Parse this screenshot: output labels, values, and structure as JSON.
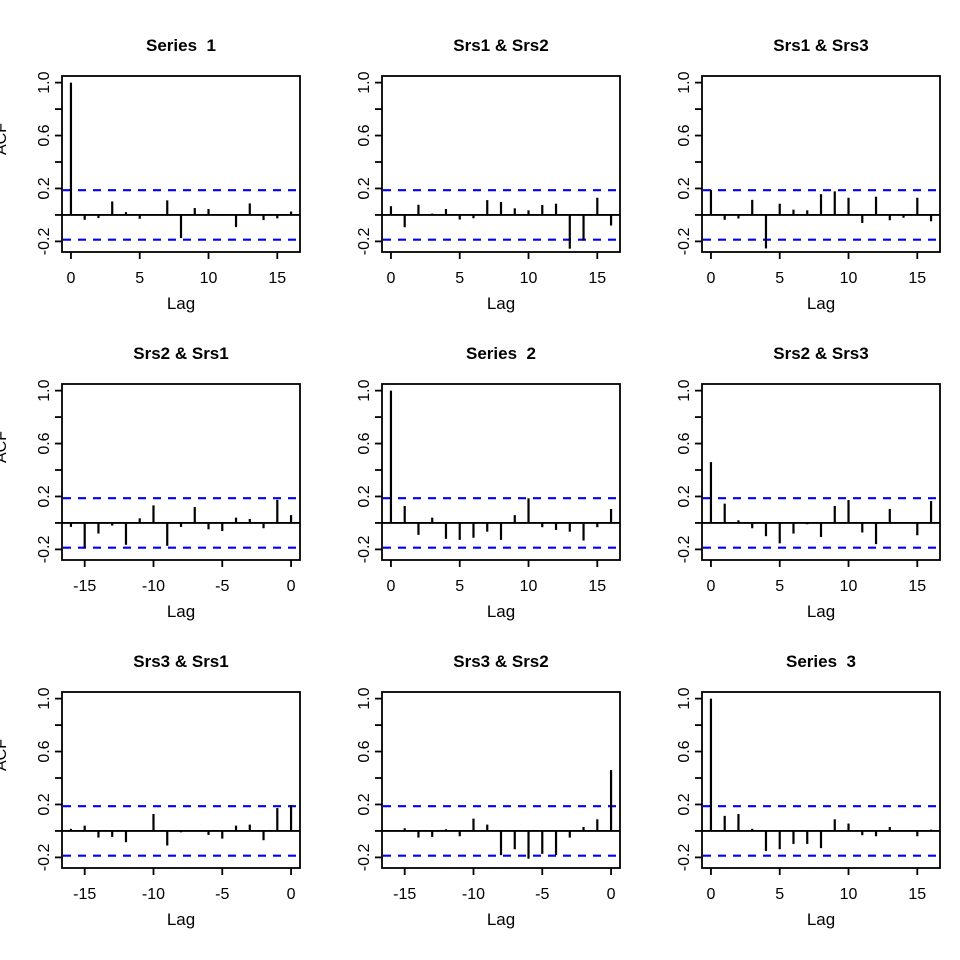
{
  "figure": {
    "background": "#ffffff",
    "bar_color": "#000000",
    "axis_color": "#000000",
    "confidence_line_color": "#0000ff",
    "confidence_bound": 0.187,
    "ylabel": "ACF",
    "xlabel": "Lag",
    "ylim": [
      -0.28,
      1.05
    ],
    "y_tick_values": [
      -0.2,
      0.2,
      0.6,
      1.0
    ],
    "y_tick_labels": [
      "-0.2",
      "0.2",
      "0.6",
      "1.0"
    ],
    "y_minor_ticks": [
      0.0,
      0.4,
      0.8
    ]
  },
  "chart_data": [
    {
      "type": "bar",
      "title": "Series  1",
      "row": 0,
      "col": 0,
      "xlim": [
        -0.65,
        16.65
      ],
      "x_ticks": [
        0,
        5,
        10,
        15
      ],
      "x_tick_labels": [
        "0",
        "5",
        "10",
        "15"
      ],
      "show_acf_label": true,
      "lags": [
        0,
        1,
        2,
        3,
        4,
        5,
        6,
        7,
        8,
        9,
        10,
        11,
        12,
        13,
        14,
        15,
        16
      ],
      "values": [
        1.0,
        -0.037,
        -0.024,
        0.102,
        0.021,
        -0.029,
        0.005,
        0.11,
        -0.175,
        0.052,
        0.045,
        -0.005,
        -0.092,
        0.087,
        -0.039,
        -0.026,
        0.026
      ]
    },
    {
      "type": "bar",
      "title": "Srs1 & Srs2",
      "row": 0,
      "col": 1,
      "xlim": [
        -0.65,
        16.65
      ],
      "x_ticks": [
        0,
        5,
        10,
        15
      ],
      "x_tick_labels": [
        "0",
        "5",
        "10",
        "15"
      ],
      "show_acf_label": false,
      "lags": [
        0,
        1,
        2,
        3,
        4,
        5,
        6,
        7,
        8,
        9,
        10,
        11,
        12,
        13,
        14,
        15,
        16
      ],
      "values": [
        0.066,
        -0.093,
        0.077,
        0.01,
        0.045,
        -0.035,
        -0.025,
        0.112,
        0.098,
        0.05,
        0.035,
        0.075,
        0.085,
        -0.255,
        -0.194,
        0.13,
        -0.08
      ]
    },
    {
      "type": "bar",
      "title": "Srs1 & Srs3",
      "row": 0,
      "col": 2,
      "xlim": [
        -0.65,
        16.65
      ],
      "x_ticks": [
        0,
        5,
        10,
        15
      ],
      "x_tick_labels": [
        "0",
        "5",
        "10",
        "15"
      ],
      "show_acf_label": false,
      "lags": [
        0,
        1,
        2,
        3,
        4,
        5,
        6,
        7,
        8,
        9,
        10,
        11,
        12,
        13,
        14,
        15,
        16
      ],
      "values": [
        0.19,
        -0.037,
        -0.027,
        0.114,
        -0.253,
        0.085,
        0.04,
        0.035,
        0.157,
        0.178,
        0.13,
        -0.061,
        0.138,
        -0.04,
        -0.021,
        0.13,
        -0.048
      ]
    },
    {
      "type": "bar",
      "title": "Srs2 & Srs1",
      "row": 1,
      "col": 0,
      "xlim": [
        -16.65,
        0.65
      ],
      "x_ticks": [
        -15,
        -10,
        -5,
        0
      ],
      "x_tick_labels": [
        "-15",
        "-10",
        "-5",
        "0"
      ],
      "show_acf_label": true,
      "lags": [
        -16,
        -15,
        -14,
        -13,
        -12,
        -11,
        -10,
        -9,
        -8,
        -7,
        -6,
        -5,
        -4,
        -3,
        -2,
        -1,
        0
      ],
      "values": [
        -0.03,
        -0.186,
        -0.08,
        -0.02,
        -0.165,
        0.035,
        0.133,
        -0.173,
        -0.03,
        0.12,
        -0.048,
        -0.061,
        0.04,
        0.03,
        -0.04,
        0.175,
        0.059
      ]
    },
    {
      "type": "bar",
      "title": "Series  2",
      "row": 1,
      "col": 1,
      "xlim": [
        -0.65,
        16.65
      ],
      "x_ticks": [
        0,
        5,
        10,
        15
      ],
      "x_tick_labels": [
        "0",
        "5",
        "10",
        "15"
      ],
      "show_acf_label": false,
      "lags": [
        0,
        1,
        2,
        3,
        4,
        5,
        6,
        7,
        8,
        9,
        10,
        11,
        12,
        13,
        14,
        15,
        16
      ],
      "values": [
        1.0,
        0.128,
        -0.09,
        0.04,
        -0.12,
        -0.128,
        -0.112,
        -0.066,
        -0.128,
        0.059,
        0.186,
        -0.032,
        -0.053,
        -0.066,
        -0.133,
        -0.032,
        0.106
      ]
    },
    {
      "type": "bar",
      "title": "Srs2 & Srs3",
      "row": 1,
      "col": 2,
      "xlim": [
        -0.65,
        16.65
      ],
      "x_ticks": [
        0,
        5,
        10,
        15
      ],
      "x_tick_labels": [
        "0",
        "5",
        "10",
        "15"
      ],
      "show_acf_label": false,
      "lags": [
        0,
        1,
        2,
        3,
        4,
        5,
        6,
        7,
        8,
        9,
        10,
        11,
        12,
        13,
        14,
        15,
        16
      ],
      "values": [
        0.46,
        0.146,
        0.02,
        -0.04,
        -0.1,
        -0.154,
        -0.08,
        -0.01,
        -0.106,
        0.128,
        0.173,
        -0.072,
        -0.16,
        0.106,
        0.0,
        -0.093,
        0.165
      ]
    },
    {
      "type": "bar",
      "title": "Srs3 & Srs1",
      "row": 2,
      "col": 0,
      "xlim": [
        -16.65,
        0.65
      ],
      "x_ticks": [
        -15,
        -10,
        -5,
        0
      ],
      "x_tick_labels": [
        "-15",
        "-10",
        "-5",
        "0"
      ],
      "show_acf_label": true,
      "lags": [
        -16,
        -15,
        -14,
        -13,
        -12,
        -11,
        -10,
        -9,
        -8,
        -7,
        -6,
        -5,
        -4,
        -3,
        -2,
        -1,
        0
      ],
      "values": [
        0.016,
        0.04,
        -0.05,
        -0.045,
        -0.085,
        0.0,
        0.128,
        -0.11,
        -0.01,
        0.0,
        -0.03,
        -0.058,
        0.04,
        0.048,
        -0.07,
        0.173,
        0.195
      ]
    },
    {
      "type": "bar",
      "title": "Srs3 & Srs2",
      "row": 2,
      "col": 1,
      "xlim": [
        -16.65,
        0.65
      ],
      "x_ticks": [
        -15,
        -10,
        -5,
        0
      ],
      "x_tick_labels": [
        "-15",
        "-10",
        "-5",
        "0"
      ],
      "show_acf_label": false,
      "lags": [
        -16,
        -15,
        -14,
        -13,
        -12,
        -11,
        -10,
        -9,
        -8,
        -7,
        -6,
        -5,
        -4,
        -3,
        -2,
        -1,
        0
      ],
      "values": [
        0.0,
        0.02,
        -0.05,
        -0.045,
        0.013,
        -0.04,
        0.093,
        0.048,
        -0.183,
        -0.138,
        -0.21,
        -0.173,
        -0.183,
        -0.05,
        0.03,
        0.088,
        0.46
      ]
    },
    {
      "type": "bar",
      "title": "Series  3",
      "row": 2,
      "col": 2,
      "xlim": [
        -0.65,
        16.65
      ],
      "x_ticks": [
        0,
        5,
        10,
        15
      ],
      "x_tick_labels": [
        "0",
        "5",
        "10",
        "15"
      ],
      "show_acf_label": false,
      "lags": [
        0,
        1,
        2,
        3,
        4,
        5,
        6,
        7,
        8,
        9,
        10,
        11,
        12,
        13,
        14,
        15,
        16
      ],
      "values": [
        1.0,
        0.114,
        0.128,
        0.016,
        -0.152,
        -0.138,
        -0.098,
        -0.098,
        -0.13,
        0.088,
        0.056,
        -0.032,
        -0.04,
        0.03,
        0.0,
        -0.04,
        0.01
      ]
    }
  ]
}
